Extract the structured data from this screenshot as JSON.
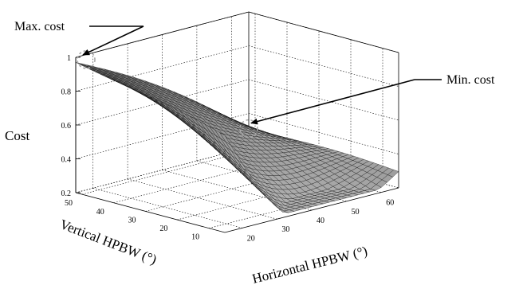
{
  "chart_data": {
    "type": "surface",
    "title": "",
    "xlabel": "Horizontal HPBW (°)",
    "ylabel": "Vertical HPBW (°)",
    "zlabel": "Cost",
    "x_range": [
      15,
      65
    ],
    "y_range": [
      5,
      52
    ],
    "z_range": [
      0.2,
      1
    ],
    "x_ticks": [
      "20",
      "30",
      "40",
      "50",
      "60"
    ],
    "y_ticks": [
      "10",
      "20",
      "30",
      "40",
      "50"
    ],
    "z_ticks": [
      "0.2",
      "0.4",
      "0.6",
      "0.8",
      "1"
    ],
    "grid": true,
    "colormap": "gray",
    "annotations": [
      {
        "label": "Max. cost",
        "x": 18,
        "y": 52,
        "z": 0.97
      },
      {
        "label": "Min. cost",
        "x": 65,
        "y": 52,
        "z": 0.31
      }
    ],
    "corner_values": [
      {
        "x": 15,
        "y": 52,
        "z": 0.97
      },
      {
        "x": 65,
        "y": 52,
        "z": 0.31
      },
      {
        "x": 15,
        "y": 5,
        "z": 0.77
      },
      {
        "x": 65,
        "y": 5,
        "z": 0.31
      }
    ]
  }
}
